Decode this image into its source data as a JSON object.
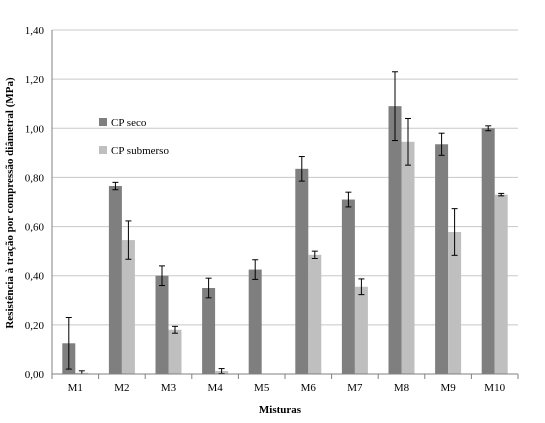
{
  "chart_data": {
    "type": "bar",
    "xlabel": "Misturas",
    "ylabel": "Resistência à tração por compressão diâmetral (MPa)",
    "ylim": [
      0,
      1.4
    ],
    "yticks": [
      0,
      0.2,
      0.4,
      0.6,
      0.8,
      1.0,
      1.2,
      1.4
    ],
    "ytick_labels": [
      "0,00",
      "0,20",
      "0,40",
      "0,60",
      "0,80",
      "1,00",
      "1,20",
      "1,40"
    ],
    "categories": [
      "M1",
      "M2",
      "M3",
      "M4",
      "M5",
      "M6",
      "M7",
      "M8",
      "M9",
      "M10"
    ],
    "grid": "horizontal",
    "legend_position": "upper-left inside plot",
    "series": [
      {
        "name": "CP seco",
        "color": "#7f7f7f",
        "values": [
          0.125,
          0.765,
          0.4,
          0.35,
          0.425,
          0.835,
          0.71,
          1.09,
          0.935,
          1.0
        ],
        "error": [
          0.105,
          0.015,
          0.04,
          0.04,
          0.04,
          0.05,
          0.03,
          0.14,
          0.045,
          0.01
        ]
      },
      {
        "name": "CP submerso",
        "color": "#bfbfbf",
        "values": [
          0.005,
          0.545,
          0.18,
          0.012,
          null,
          0.485,
          0.355,
          0.945,
          0.578,
          0.73
        ],
        "error": [
          0.008,
          0.078,
          0.014,
          0.01,
          null,
          0.015,
          0.032,
          0.095,
          0.095,
          0.005
        ]
      }
    ]
  }
}
